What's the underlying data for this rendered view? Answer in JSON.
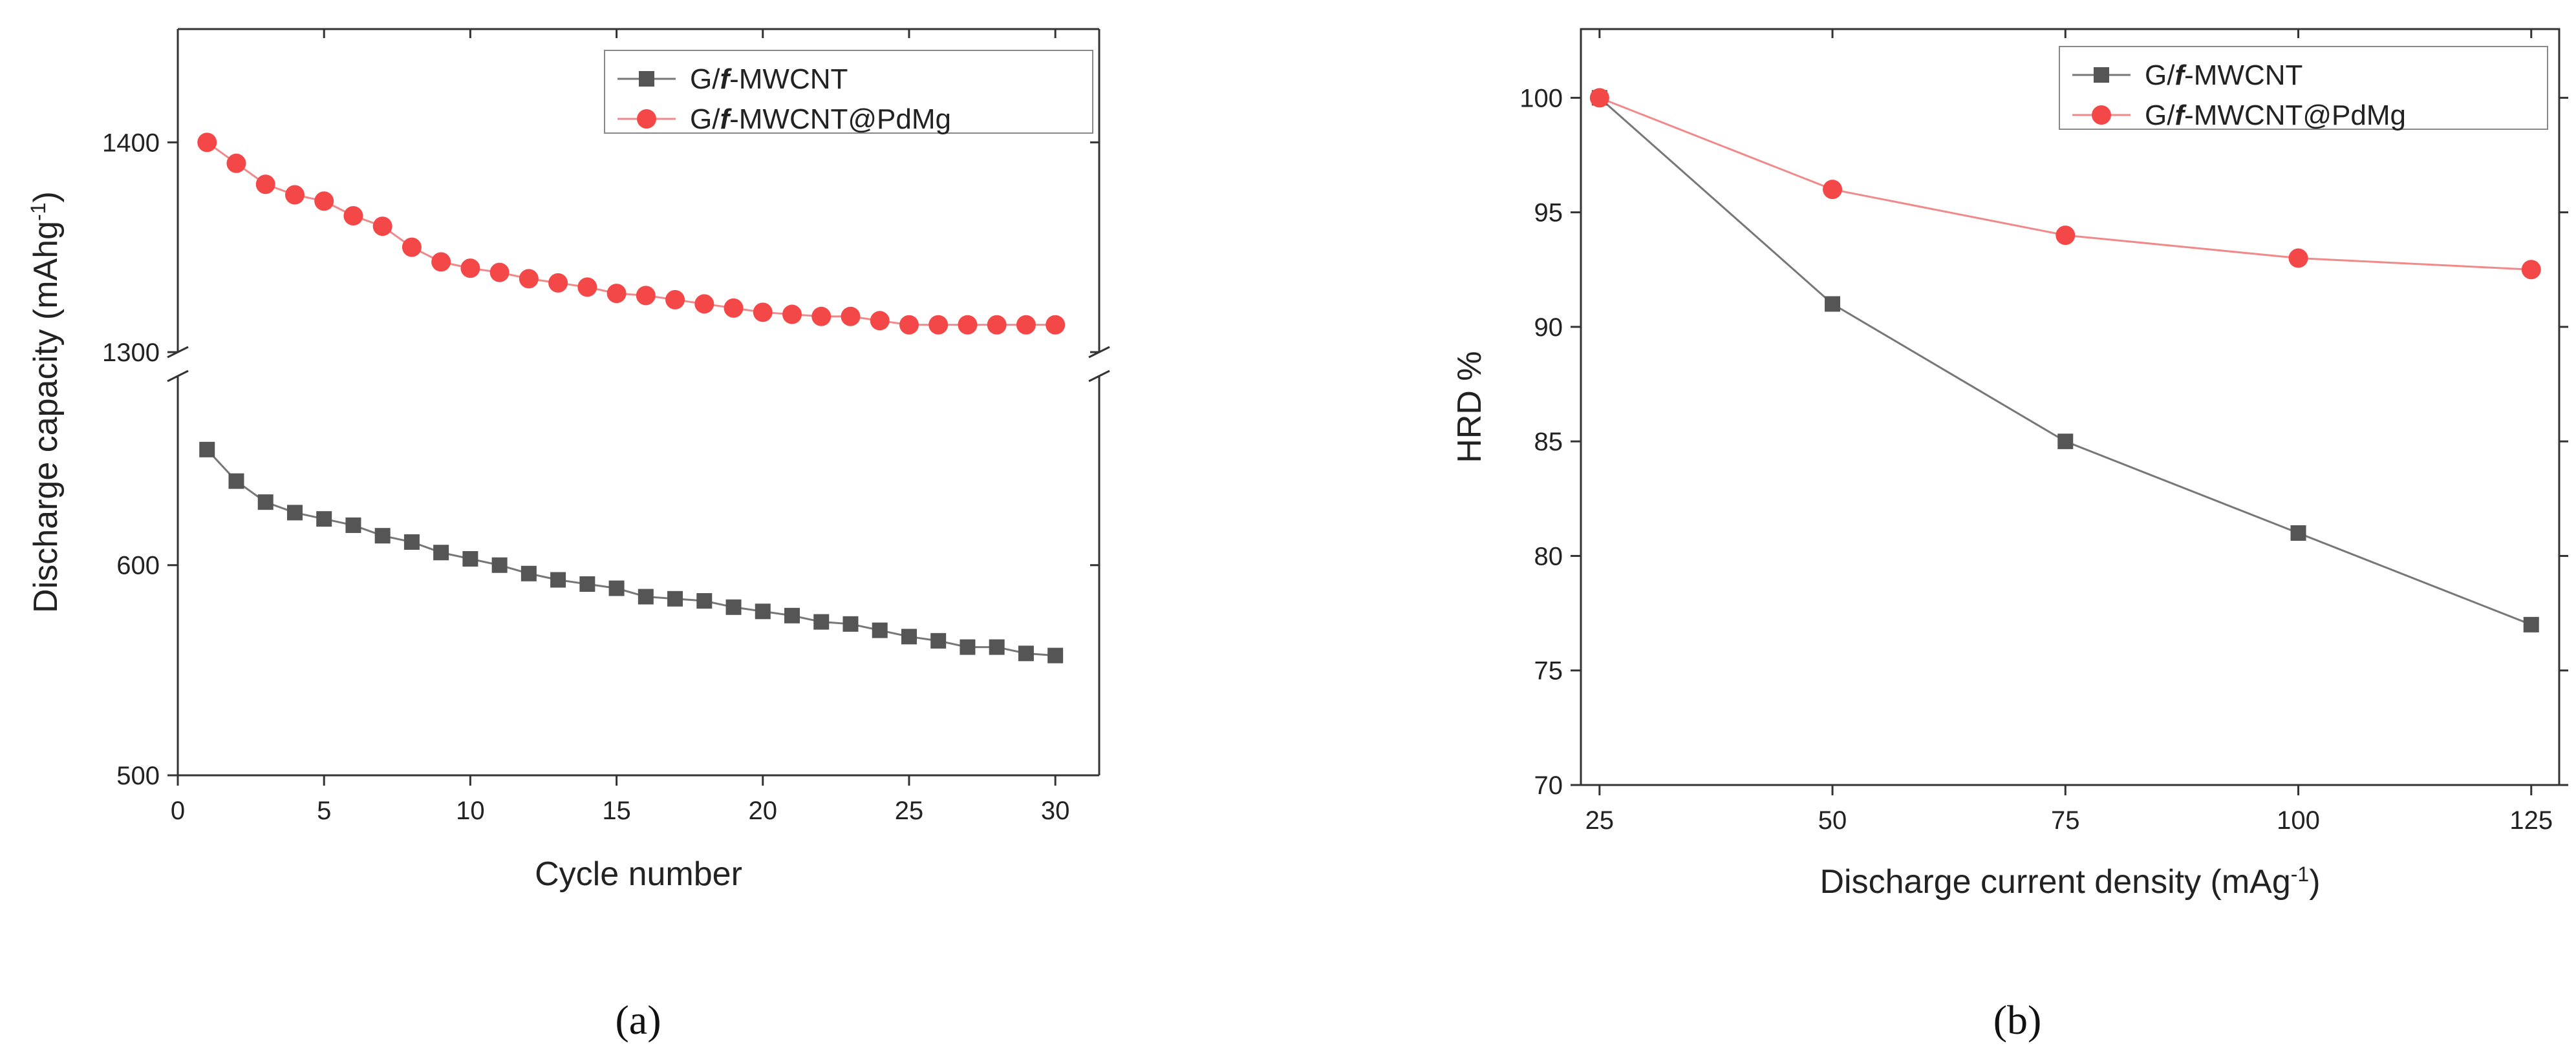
{
  "colors": {
    "series_black": "#555555",
    "series_red": "#f44848",
    "line_black": "#777777",
    "line_red": "#f08a8a",
    "axis": "#333333"
  },
  "chart_data": [
    {
      "type": "line",
      "panel_label": "a",
      "xlabel": "Cycle number",
      "ylabel": "Discharge capacity (mAhg",
      "ylabel_sup": "-1",
      "ylabel_close": ")",
      "xlim": [
        0,
        31.5
      ],
      "x_ticks": [
        0,
        5,
        10,
        15,
        20,
        25,
        30
      ],
      "x_tick_labels": [
        "0",
        "5",
        "10",
        "15",
        "20",
        "25",
        "30"
      ],
      "broken_y_axis": true,
      "y_lower_range": [
        500,
        690
      ],
      "y_lower_ticks": [
        500,
        600
      ],
      "y_lower_tick_labels": [
        "500",
        "600"
      ],
      "y_upper_range": [
        1300,
        1450
      ],
      "y_upper_ticks": [
        1300,
        1400
      ],
      "y_upper_tick_labels": [
        "1300",
        "1400"
      ],
      "legend_position": "top-right",
      "x": [
        1,
        2,
        3,
        4,
        5,
        6,
        7,
        8,
        9,
        10,
        11,
        12,
        13,
        14,
        15,
        16,
        17,
        18,
        19,
        20,
        21,
        22,
        23,
        24,
        25,
        26,
        27,
        28,
        29,
        30
      ],
      "series": [
        {
          "name": "G/",
          "name_italic": "f",
          "name_rest": "-MWCNT",
          "marker": "square",
          "values": [
            655,
            640,
            630,
            625,
            622,
            619,
            614,
            611,
            606,
            603,
            600,
            596,
            593,
            591,
            589,
            585,
            584,
            583,
            580,
            578,
            576,
            573,
            572,
            569,
            566,
            564,
            561,
            561,
            558,
            557
          ]
        },
        {
          "name": "G/",
          "name_italic": "f",
          "name_rest": "-MWCNT@PdMg",
          "marker": "circle",
          "values": [
            1400,
            1390,
            1380,
            1375,
            1372,
            1365,
            1360,
            1350,
            1343,
            1340,
            1338,
            1335,
            1333,
            1331,
            1328,
            1327,
            1325,
            1323,
            1321,
            1319,
            1318,
            1317,
            1317,
            1315,
            1313,
            1313,
            1313,
            1313,
            1313,
            1313
          ]
        }
      ]
    },
    {
      "type": "line",
      "panel_label": "b",
      "xlabel": "Discharge current density (mAg",
      "xlabel_sup": "-1",
      "xlabel_close": ")",
      "ylabel": "HRD %",
      "xlim": [
        23,
        128
      ],
      "ylim": [
        70,
        103
      ],
      "x_ticks": [
        25,
        50,
        75,
        100,
        125
      ],
      "x_tick_labels": [
        "25",
        "50",
        "75",
        "100",
        "125"
      ],
      "y_ticks": [
        70,
        75,
        80,
        85,
        90,
        95,
        100
      ],
      "y_tick_labels": [
        "70",
        "75",
        "80",
        "85",
        "90",
        "95",
        "100"
      ],
      "legend_position": "top-right",
      "x": [
        25,
        50,
        75,
        100,
        125
      ],
      "series": [
        {
          "name": "G/",
          "name_italic": "f",
          "name_rest": "-MWCNT",
          "marker": "square",
          "values": [
            100,
            91,
            85,
            81,
            77
          ]
        },
        {
          "name": "G/",
          "name_italic": "f",
          "name_rest": "-MWCNT@PdMg",
          "marker": "circle",
          "values": [
            100,
            96,
            94,
            93,
            92.5
          ]
        }
      ]
    }
  ]
}
